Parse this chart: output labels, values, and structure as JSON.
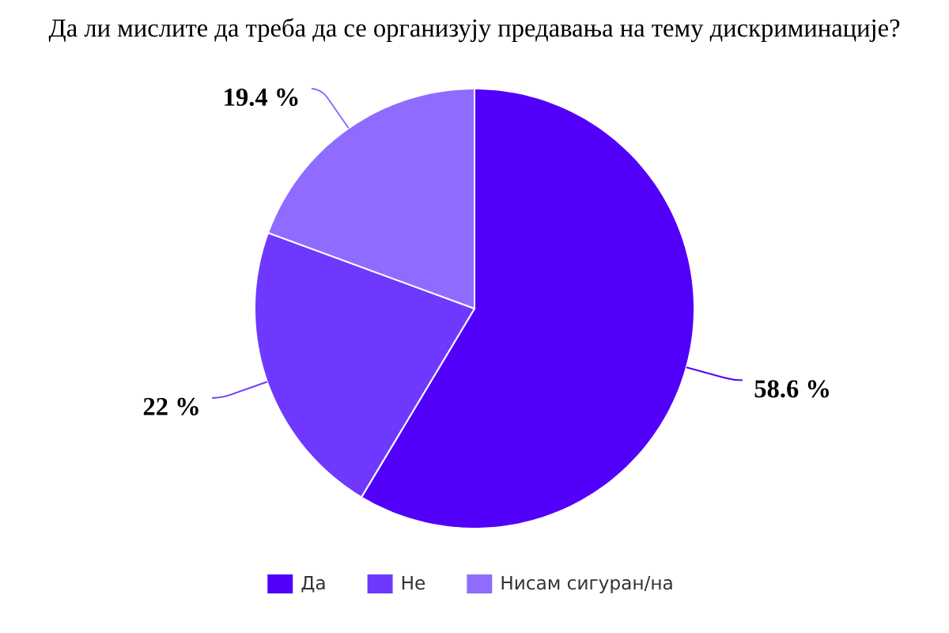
{
  "chart_data": {
    "type": "pie",
    "title": "Да ли мислите да треба да се организују предавања на тему дискриминације?",
    "categories": [
      "Да",
      "Не",
      "Нисам сигуран/на"
    ],
    "values": [
      58.6,
      22,
      19.4
    ],
    "colors": [
      "#5200fa",
      "#6f38ff",
      "#8f6cff"
    ],
    "value_labels": [
      "58.6 %",
      "22 %",
      "19.4 %"
    ],
    "legend": "bottom"
  }
}
